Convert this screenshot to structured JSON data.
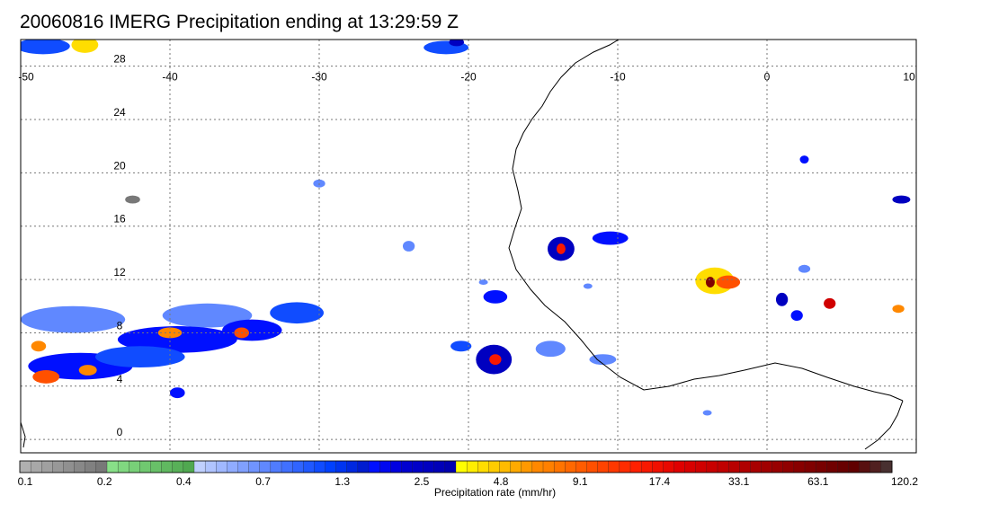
{
  "title": "20060816 IMERG Precipitation ending at 13:29:59 Z",
  "map": {
    "lon_range": [
      -50,
      10
    ],
    "lat_range": [
      -1,
      30
    ],
    "lon_ticks": [
      "-50",
      "-40",
      "-30",
      "-20",
      "-10",
      "0",
      "10"
    ],
    "lat_ticks": [
      "28",
      "24",
      "20",
      "16",
      "12",
      "8",
      "4",
      "0"
    ],
    "grid": true,
    "precip_cells": [
      {
        "lon": -48.5,
        "lat": 29.5,
        "rx": 1.8,
        "ry": 0.6,
        "level": 5
      },
      {
        "lon": -45.7,
        "lat": 29.6,
        "rx": 0.9,
        "ry": 0.6,
        "level": 8
      },
      {
        "lon": -21.5,
        "lat": 29.4,
        "rx": 1.5,
        "ry": 0.5,
        "level": 5
      },
      {
        "lon": -20.8,
        "lat": 29.8,
        "rx": 0.5,
        "ry": 0.3,
        "level": 7
      },
      {
        "lon": -42.5,
        "lat": 18.0,
        "rx": 0.5,
        "ry": 0.3,
        "level": 1
      },
      {
        "lon": -30.0,
        "lat": 19.2,
        "rx": 0.4,
        "ry": 0.3,
        "level": 4
      },
      {
        "lon": -24.0,
        "lat": 14.5,
        "rx": 0.4,
        "ry": 0.4,
        "level": 4
      },
      {
        "lon": -13.8,
        "lat": 14.3,
        "rx": 0.9,
        "ry": 0.9,
        "level": 7
      },
      {
        "lon": -13.8,
        "lat": 14.3,
        "rx": 0.3,
        "ry": 0.4,
        "level": 11
      },
      {
        "lon": -10.5,
        "lat": 15.1,
        "rx": 1.2,
        "ry": 0.5,
        "level": 6
      },
      {
        "lon": -18.2,
        "lat": 10.7,
        "rx": 0.8,
        "ry": 0.5,
        "level": 6
      },
      {
        "lon": -46.5,
        "lat": 9.0,
        "rx": 3.5,
        "ry": 1.0,
        "level": 4
      },
      {
        "lon": -37.5,
        "lat": 9.3,
        "rx": 3.0,
        "ry": 0.9,
        "level": 4
      },
      {
        "lon": -39.5,
        "lat": 7.5,
        "rx": 4.0,
        "ry": 1.0,
        "level": 6
      },
      {
        "lon": -34.5,
        "lat": 8.2,
        "rx": 2.0,
        "ry": 0.8,
        "level": 6
      },
      {
        "lon": -31.5,
        "lat": 9.5,
        "rx": 1.8,
        "ry": 0.8,
        "level": 5
      },
      {
        "lon": -40.0,
        "lat": 8.0,
        "rx": 0.8,
        "ry": 0.4,
        "level": 9
      },
      {
        "lon": -35.2,
        "lat": 8.0,
        "rx": 0.5,
        "ry": 0.4,
        "level": 10
      },
      {
        "lon": -46.0,
        "lat": 5.5,
        "rx": 3.5,
        "ry": 1.0,
        "level": 6
      },
      {
        "lon": -42.0,
        "lat": 6.2,
        "rx": 3.0,
        "ry": 0.8,
        "level": 5
      },
      {
        "lon": -48.3,
        "lat": 4.7,
        "rx": 0.9,
        "ry": 0.5,
        "level": 10
      },
      {
        "lon": -45.5,
        "lat": 5.2,
        "rx": 0.6,
        "ry": 0.4,
        "level": 9
      },
      {
        "lon": -48.8,
        "lat": 7.0,
        "rx": 0.5,
        "ry": 0.4,
        "level": 9
      },
      {
        "lon": -39.5,
        "lat": 3.5,
        "rx": 0.5,
        "ry": 0.4,
        "level": 6
      },
      {
        "lon": -18.3,
        "lat": 6.0,
        "rx": 1.2,
        "ry": 1.1,
        "level": 7
      },
      {
        "lon": -18.2,
        "lat": 6.0,
        "rx": 0.4,
        "ry": 0.4,
        "level": 11
      },
      {
        "lon": -20.5,
        "lat": 7.0,
        "rx": 0.7,
        "ry": 0.4,
        "level": 5
      },
      {
        "lon": -14.5,
        "lat": 6.8,
        "rx": 1.0,
        "ry": 0.6,
        "level": 4
      },
      {
        "lon": -11.0,
        "lat": 6.0,
        "rx": 0.9,
        "ry": 0.4,
        "level": 4
      },
      {
        "lon": -3.5,
        "lat": 11.9,
        "rx": 1.3,
        "ry": 1.0,
        "level": 8
      },
      {
        "lon": -2.6,
        "lat": 11.8,
        "rx": 0.8,
        "ry": 0.5,
        "level": 10
      },
      {
        "lon": -3.8,
        "lat": 11.8,
        "rx": 0.3,
        "ry": 0.4,
        "level": 14
      },
      {
        "lon": 1.0,
        "lat": 10.5,
        "rx": 0.4,
        "ry": 0.5,
        "level": 7
      },
      {
        "lon": 2.0,
        "lat": 9.3,
        "rx": 0.4,
        "ry": 0.4,
        "level": 6
      },
      {
        "lon": 4.2,
        "lat": 10.2,
        "rx": 0.4,
        "ry": 0.4,
        "level": 12
      },
      {
        "lon": 8.8,
        "lat": 9.8,
        "rx": 0.4,
        "ry": 0.3,
        "level": 9
      },
      {
        "lon": 9.0,
        "lat": 18.0,
        "rx": 0.6,
        "ry": 0.3,
        "level": 7
      },
      {
        "lon": 2.5,
        "lat": 21.0,
        "rx": 0.3,
        "ry": 0.3,
        "level": 6
      },
      {
        "lon": -19.0,
        "lat": 11.8,
        "rx": 0.3,
        "ry": 0.2,
        "level": 4
      },
      {
        "lon": -12.0,
        "lat": 11.5,
        "rx": 0.3,
        "ry": 0.2,
        "level": 4
      },
      {
        "lon": 2.5,
        "lat": 12.8,
        "rx": 0.4,
        "ry": 0.3,
        "level": 4
      },
      {
        "lon": -4.0,
        "lat": 2.0,
        "rx": 0.3,
        "ry": 0.2,
        "level": 4
      }
    ]
  },
  "colorbar": {
    "colors": [
      "#b0b0b0",
      "#a8a8a8",
      "#a0a0a0",
      "#989898",
      "#909090",
      "#888888",
      "#808080",
      "#787878",
      "#88e088",
      "#80d880",
      "#78d078",
      "#70c870",
      "#68c068",
      "#60b860",
      "#58b058",
      "#50a850",
      "#c0d0ff",
      "#b0c4ff",
      "#a0b8ff",
      "#90acff",
      "#80a0ff",
      "#7094ff",
      "#6088ff",
      "#507cff",
      "#4070ff",
      "#3064ff",
      "#2058ff",
      "#104cff",
      "#0040ff",
      "#0034f0",
      "#0028e0",
      "#001cd0",
      "#0010ff",
      "#0008f0",
      "#0000e0",
      "#0000d0",
      "#0000c8",
      "#0000c0",
      "#0000b8",
      "#0000b0",
      "#ffff00",
      "#ffee00",
      "#ffdd00",
      "#ffcc00",
      "#ffbb00",
      "#ffaa00",
      "#ff9900",
      "#ff8800",
      "#ff8000",
      "#ff7400",
      "#ff6800",
      "#ff5c00",
      "#ff5000",
      "#ff4400",
      "#ff3800",
      "#ff2c00",
      "#ff2000",
      "#f81800",
      "#f01000",
      "#e80800",
      "#e00000",
      "#d80000",
      "#d00000",
      "#c80000",
      "#c00000",
      "#b80000",
      "#b00000",
      "#a80000",
      "#a00000",
      "#980000",
      "#900000",
      "#880000",
      "#800000",
      "#780000",
      "#700000",
      "#680000",
      "#600000",
      "#581010",
      "#502020",
      "#483030"
    ],
    "tick_labels": [
      "0.1",
      "0.2",
      "0.4",
      "0.7",
      "1.3",
      "2.5",
      "4.8",
      "9.1",
      "17.4",
      "33.1",
      "63.1",
      "120.2"
    ],
    "unit_label": "Precipitation rate (mm/hr)"
  }
}
